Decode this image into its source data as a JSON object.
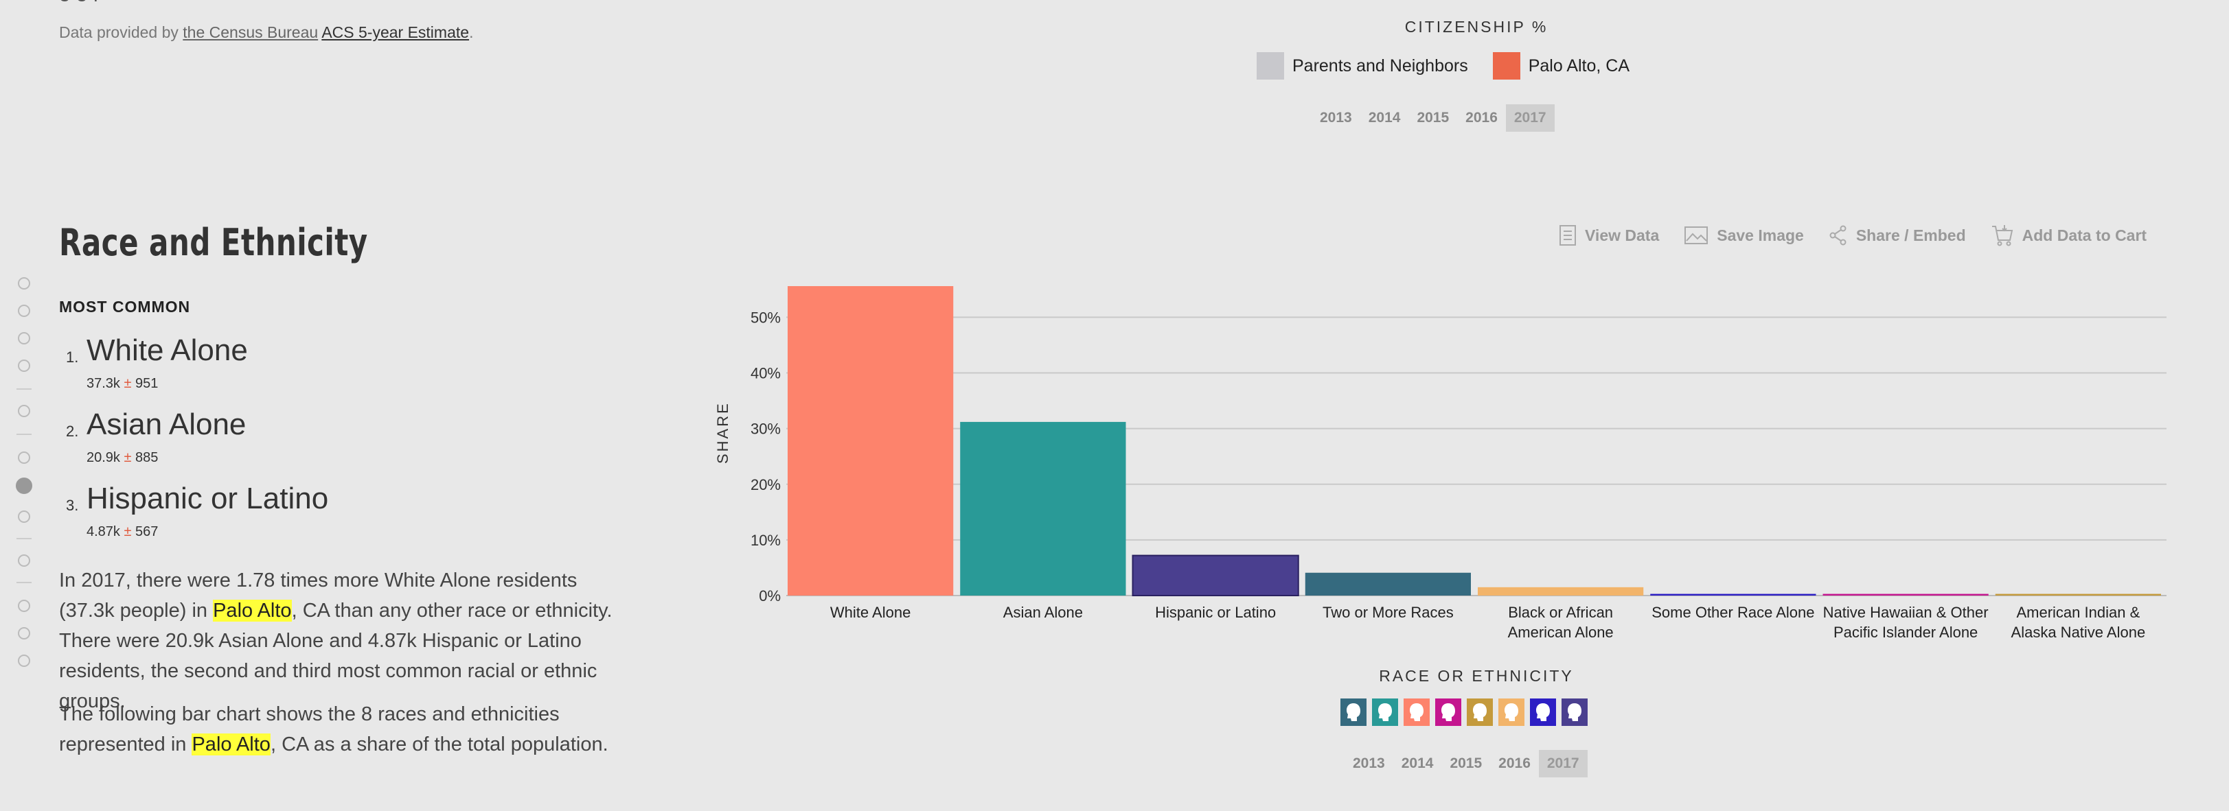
{
  "header": {
    "provided_prefix": "Data provided by ",
    "source_link_1": "the Census Bureau",
    "source_link_2": "ACS 5-year Estimate",
    "provided_suffix": "."
  },
  "citizenship": {
    "title": "CITIZENSHIP %",
    "legend": [
      {
        "label": "Parents and Neighbors",
        "color": "#c8c8cc"
      },
      {
        "label": "Palo Alto, CA",
        "color": "#ec6749"
      }
    ],
    "years": [
      "2013",
      "2014",
      "2015",
      "2016",
      "2017"
    ],
    "active_year": "2017"
  },
  "section": {
    "title": "Race and Ethnicity",
    "most_common_label": "MOST COMMON",
    "ranks": [
      {
        "num": "1.",
        "name": "White Alone",
        "value": "37.3k",
        "pm": "±",
        "moe": "951"
      },
      {
        "num": "2.",
        "name": "Asian Alone",
        "value": "20.9k",
        "pm": "±",
        "moe": "885"
      },
      {
        "num": "3.",
        "name": "Hispanic or Latino",
        "value": "4.87k",
        "pm": "±",
        "moe": "567"
      }
    ],
    "para1_a": "In 2017, there were 1.78 times more White Alone residents (37.3k people) in ",
    "place": "Palo Alto",
    "para1_b": ", CA than any other race or ethnicity. There were 20.9k Asian Alone and 4.87k Hispanic or Latino residents, the second and third most common racial or ethnic groups.",
    "para2_a": "The following bar chart shows the 8 races and ethnicities represented in ",
    "para2_b": ", CA as a share of the total population."
  },
  "toolbar": {
    "view_data": "View Data",
    "save_image": "Save Image",
    "share_embed": "Share / Embed",
    "add_to_cart": "Add Data to Cart"
  },
  "chart_data": {
    "type": "bar",
    "categories": [
      "White Alone",
      "Asian Alone",
      "Hispanic or Latino",
      "Two or More Races",
      "Black or African American Alone",
      "Some Other Race Alone",
      "Native Hawaiian & Other Pacific Islander Alone",
      "American Indian & Alaska Native Alone"
    ],
    "category_lines": [
      [
        "White Alone"
      ],
      [
        "Asian Alone"
      ],
      [
        "Hispanic or Latino"
      ],
      [
        "Two or More Races"
      ],
      [
        "Black or African",
        "American Alone"
      ],
      [
        "Some Other Race Alone"
      ],
      [
        "Native Hawaiian & Other",
        "Pacific Islander Alone"
      ],
      [
        "American Indian &",
        "Alaska Native Alone"
      ]
    ],
    "values": [
      55.6,
      31.2,
      7.2,
      4.1,
      1.5,
      0.3,
      0.3,
      0.3
    ],
    "colors": [
      "#fd836c",
      "#299a97",
      "#4a3f8f",
      "#356a7f",
      "#f2b46a",
      "#2d1fc4",
      "#c4168f",
      "#c49a3c"
    ],
    "ylabel": "SHARE",
    "xlabel": "RACE OR ETHNICITY",
    "yticks": [
      0,
      10,
      20,
      30,
      40,
      50
    ],
    "ytick_labels": [
      "0%",
      "10%",
      "20%",
      "30%",
      "40%",
      "50%"
    ],
    "ylim": [
      0,
      55.6
    ],
    "grid": true
  },
  "race_icons": [
    "#356a7f",
    "#299a97",
    "#fd836c",
    "#c4168f",
    "#c49a3c",
    "#f2b46a",
    "#2d1fc4",
    "#4a3f8f"
  ],
  "race_years": [
    "2013",
    "2014",
    "2015",
    "2016",
    "2017"
  ],
  "race_active_year": "2017"
}
